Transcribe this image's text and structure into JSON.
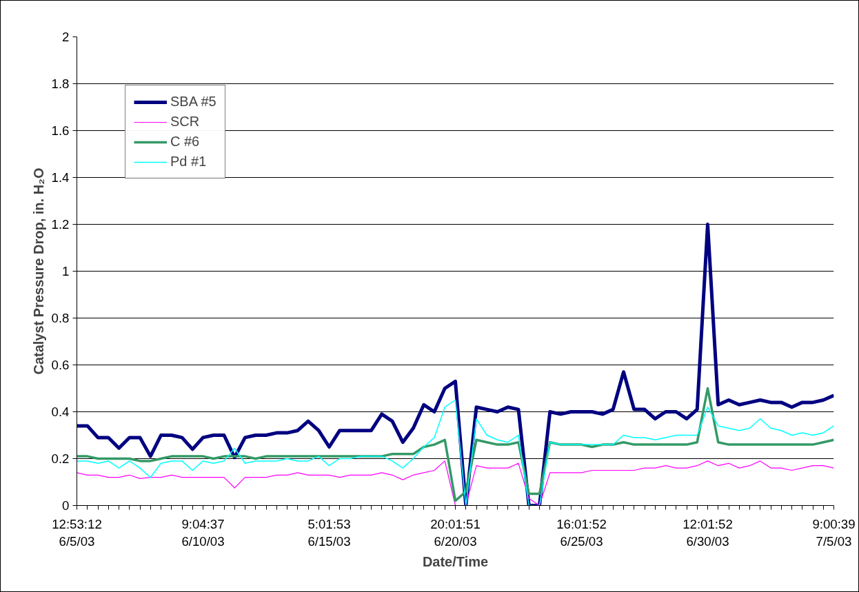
{
  "chart_data": {
    "type": "line",
    "xlabel": "Date/Time",
    "ylabel": "Catalyst Pressure Drop, in. H₂O",
    "categories": [
      "12:53:12\n6/5/03",
      null,
      null,
      null,
      null,
      null,
      null,
      null,
      null,
      null,
      null,
      null,
      "9:04:37\n6/10/03",
      null,
      null,
      null,
      null,
      null,
      null,
      null,
      null,
      null,
      null,
      null,
      "5:01:53\n6/15/03",
      null,
      null,
      null,
      null,
      null,
      null,
      null,
      null,
      null,
      null,
      null,
      "20:01:51\n6/20/03",
      null,
      null,
      null,
      null,
      null,
      null,
      null,
      null,
      null,
      null,
      null,
      "16:01:52\n6/25/03",
      null,
      null,
      null,
      null,
      null,
      null,
      null,
      null,
      null,
      null,
      null,
      "12:01:52\n6/30/03",
      null,
      null,
      null,
      null,
      null,
      null,
      null,
      null,
      null,
      null,
      null,
      "9:00:39\n7/5/03"
    ],
    "ylim": [
      0,
      2
    ],
    "yticks": [
      0,
      0.2,
      0.4,
      0.6,
      0.8,
      1,
      1.2,
      1.4,
      1.6,
      1.8,
      2
    ],
    "grid": "y",
    "legend": "top left",
    "marker": "none",
    "line_style": "solid",
    "series": [
      {
        "name": "SBA #5",
        "color": "#000080",
        "values": [
          0.34,
          0.34,
          0.29,
          0.29,
          0.245,
          0.29,
          0.29,
          0.21,
          0.3,
          0.3,
          0.29,
          0.24,
          0.29,
          0.3,
          0.3,
          0.205,
          0.29,
          0.3,
          0.3,
          0.31,
          0.31,
          0.32,
          0.36,
          0.32,
          0.25,
          0.32,
          0.32,
          0.32,
          0.32,
          0.39,
          0.36,
          0.27,
          0.33,
          0.43,
          0.4,
          0.5,
          0.53,
          0,
          0.42,
          0.41,
          0.4,
          0.42,
          0.41,
          0,
          0,
          0.4,
          0.39,
          0.4,
          0.4,
          0.4,
          0.39,
          0.41,
          0.57,
          0.41,
          0.41,
          0.37,
          0.4,
          0.4,
          0.37,
          0.41,
          1.2,
          0.43,
          0.45,
          0.43,
          0.44,
          0.45,
          0.44,
          0.44,
          0.42,
          0.44,
          0.44,
          0.45,
          0.47
        ]
      },
      {
        "name": "SCR",
        "color": "#ff00ff",
        "values": [
          0.14,
          0.13,
          0.13,
          0.12,
          0.12,
          0.13,
          0.115,
          0.12,
          0.12,
          0.13,
          0.12,
          0.12,
          0.12,
          0.12,
          0.12,
          0.075,
          0.12,
          0.12,
          0.12,
          0.13,
          0.13,
          0.14,
          0.13,
          0.13,
          0.13,
          0.12,
          0.13,
          0.13,
          0.13,
          0.14,
          0.13,
          0.11,
          0.13,
          0.14,
          0.15,
          0.19,
          0,
          0,
          0.17,
          0.16,
          0.16,
          0.16,
          0.18,
          0.03,
          0,
          0.14,
          0.14,
          0.14,
          0.14,
          0.15,
          0.15,
          0.15,
          0.15,
          0.15,
          0.16,
          0.16,
          0.17,
          0.16,
          0.16,
          0.17,
          0.19,
          0.17,
          0.18,
          0.16,
          0.17,
          0.19,
          0.16,
          0.16,
          0.15,
          0.16,
          0.17,
          0.17,
          0.16
        ]
      },
      {
        "name": "C #6",
        "color": "#339966",
        "values": [
          0.21,
          0.21,
          0.2,
          0.2,
          0.2,
          0.2,
          0.19,
          0.19,
          0.2,
          0.21,
          0.21,
          0.21,
          0.21,
          0.2,
          0.21,
          0.21,
          0.21,
          0.2,
          0.21,
          0.21,
          0.21,
          0.21,
          0.21,
          0.21,
          0.21,
          0.21,
          0.21,
          0.21,
          0.21,
          0.21,
          0.22,
          0.22,
          0.22,
          0.25,
          0.26,
          0.28,
          0.02,
          0.06,
          0.28,
          0.27,
          0.26,
          0.26,
          0.27,
          0.05,
          0.05,
          0.27,
          0.26,
          0.26,
          0.26,
          0.25,
          0.26,
          0.26,
          0.27,
          0.26,
          0.26,
          0.26,
          0.26,
          0.26,
          0.26,
          0.27,
          0.5,
          0.27,
          0.26,
          0.26,
          0.26,
          0.26,
          0.26,
          0.26,
          0.26,
          0.26,
          0.26,
          0.27,
          0.28
        ]
      },
      {
        "name": "Pd #1",
        "color": "#00ffff",
        "values": [
          0.19,
          0.19,
          0.18,
          0.19,
          0.16,
          0.19,
          0.16,
          0.12,
          0.18,
          0.19,
          0.19,
          0.15,
          0.19,
          0.18,
          0.19,
          0.245,
          0.18,
          0.19,
          0.19,
          0.19,
          0.2,
          0.19,
          0.19,
          0.21,
          0.17,
          0.2,
          0.2,
          0.21,
          0.21,
          0.21,
          0.19,
          0.16,
          0.2,
          0.25,
          0.29,
          0.42,
          0.45,
          0,
          0.37,
          0.3,
          0.28,
          0.27,
          0.3,
          0,
          0,
          0.27,
          0.26,
          0.26,
          0.26,
          0.26,
          0.26,
          0.26,
          0.3,
          0.29,
          0.29,
          0.28,
          0.29,
          0.3,
          0.3,
          0.3,
          0.42,
          0.34,
          0.33,
          0.32,
          0.33,
          0.37,
          0.33,
          0.32,
          0.3,
          0.31,
          0.3,
          0.31,
          0.34
        ]
      }
    ]
  }
}
